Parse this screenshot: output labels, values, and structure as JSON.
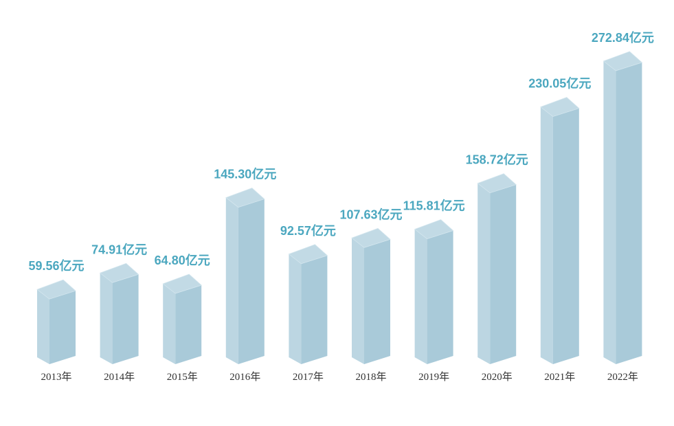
{
  "chart_data": {
    "type": "bar",
    "title": "",
    "xlabel": "",
    "ylabel": "",
    "categories": [
      "2013年",
      "2014年",
      "2015年",
      "2016年",
      "2017年",
      "2018年",
      "2019年",
      "2020年",
      "2021年",
      "2022年"
    ],
    "values": [
      59.56,
      74.91,
      64.8,
      145.3,
      92.57,
      107.63,
      115.81,
      158.72,
      230.05,
      272.84
    ],
    "value_labels": [
      "59.56亿元",
      "74.91亿元",
      "64.80亿元",
      "145.30亿元",
      "92.57亿元",
      "107.63亿元",
      "115.81亿元",
      "158.72亿元",
      "230.05亿元",
      "272.84亿元"
    ],
    "unit": "亿元",
    "ylim": [
      0,
      280
    ],
    "grid": false,
    "style": "3d-prism",
    "colors": {
      "front": "#a9cad9",
      "side": "#bcd6e2",
      "top": "#c2dae5",
      "label": "#4ba7bf",
      "year": "#333333"
    }
  }
}
